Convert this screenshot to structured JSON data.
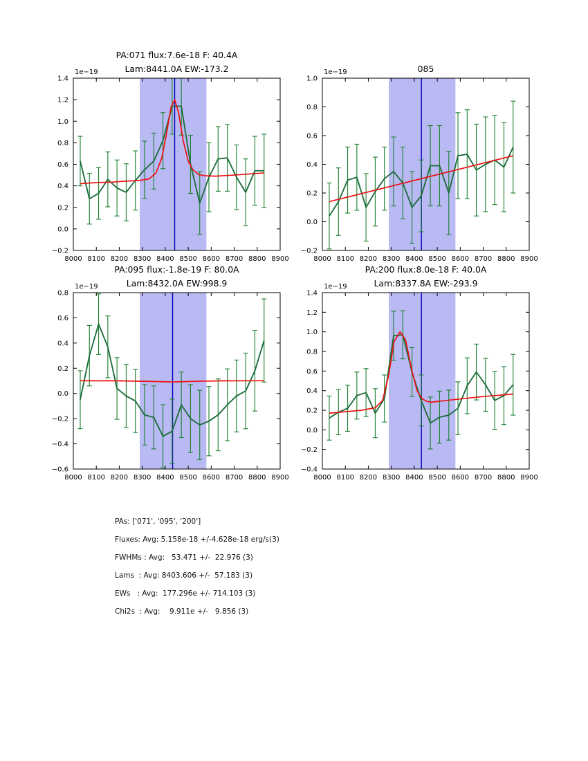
{
  "colors": {
    "spectrum": "#1e6e3c",
    "error": "#208333",
    "fit": "#ee1111",
    "band": "#b9b9f3",
    "vline": "#0000bb",
    "axis": "#000000"
  },
  "chart_data": [
    {
      "id": "pa071",
      "type": "line",
      "title_lines": [
        "PA:071 flux:7.6e-18 F: 40.4A",
        "Lam:8441.0A EW:-173.2"
      ],
      "offset_text": "1e−19",
      "xlim": [
        8000,
        8900
      ],
      "ylim": [
        -0.2,
        1.4
      ],
      "xticks": [
        8000,
        8100,
        8200,
        8300,
        8400,
        8500,
        8600,
        8700,
        8800,
        8900
      ],
      "yticks": [
        -0.2,
        0.0,
        0.2,
        0.4,
        0.6,
        0.8,
        1.0,
        1.2,
        1.4
      ],
      "band": [
        8289,
        8579
      ],
      "vline": 8441,
      "x": [
        8030,
        8070,
        8110,
        8150,
        8190,
        8230,
        8270,
        8310,
        8350,
        8390,
        8430,
        8470,
        8510,
        8550,
        8590,
        8630,
        8670,
        8710,
        8750,
        8790,
        8830
      ],
      "flux": [
        0.63,
        0.28,
        0.33,
        0.46,
        0.38,
        0.34,
        0.45,
        0.55,
        0.63,
        0.82,
        1.14,
        1.14,
        0.6,
        0.24,
        0.48,
        0.65,
        0.66,
        0.48,
        0.34,
        0.54,
        0.54
      ],
      "err": [
        0.23,
        0.235,
        0.24,
        0.255,
        0.26,
        0.265,
        0.275,
        0.265,
        0.26,
        0.26,
        0.26,
        0.27,
        0.27,
        0.29,
        0.32,
        0.3,
        0.31,
        0.3,
        0.31,
        0.32,
        0.34
      ],
      "fit_x": [
        8030,
        8100,
        8170,
        8240,
        8290,
        8330,
        8360,
        8385,
        8405,
        8425,
        8441,
        8458,
        8478,
        8500,
        8520,
        8545,
        8575,
        8620,
        8700,
        8830
      ],
      "fit_y": [
        0.42,
        0.43,
        0.435,
        0.445,
        0.45,
        0.465,
        0.52,
        0.66,
        0.88,
        1.13,
        1.2,
        1.08,
        0.82,
        0.63,
        0.55,
        0.505,
        0.493,
        0.49,
        0.5,
        0.52
      ],
      "pos": [
        106,
        113,
        299,
        249
      ]
    },
    {
      "id": "085",
      "type": "line",
      "title_lines": [
        "085"
      ],
      "offset_text": "1e−19",
      "xlim": [
        8000,
        8900
      ],
      "ylim": [
        -0.2,
        1.0
      ],
      "xticks": [
        8000,
        8100,
        8200,
        8300,
        8400,
        8500,
        8600,
        8700,
        8800,
        8900
      ],
      "yticks": [
        -0.2,
        0.0,
        0.2,
        0.4,
        0.6,
        0.8,
        1.0
      ],
      "band": [
        8289,
        8579
      ],
      "vline": 8431,
      "x": [
        8030,
        8070,
        8110,
        8150,
        8190,
        8230,
        8270,
        8310,
        8350,
        8390,
        8430,
        8470,
        8510,
        8550,
        8590,
        8630,
        8670,
        8710,
        8750,
        8790,
        8830
      ],
      "flux": [
        0.04,
        0.14,
        0.29,
        0.31,
        0.1,
        0.21,
        0.3,
        0.35,
        0.27,
        0.1,
        0.18,
        0.39,
        0.39,
        0.2,
        0.46,
        0.47,
        0.36,
        0.4,
        0.43,
        0.38,
        0.52
      ],
      "err": [
        0.23,
        0.235,
        0.23,
        0.23,
        0.235,
        0.24,
        0.22,
        0.24,
        0.25,
        0.25,
        0.25,
        0.28,
        0.28,
        0.29,
        0.3,
        0.31,
        0.32,
        0.33,
        0.31,
        0.31,
        0.32
      ],
      "fit_x": [
        8030,
        8830
      ],
      "fit_y": [
        0.14,
        0.46
      ],
      "pos": [
        466,
        113,
        299,
        249
      ]
    },
    {
      "id": "pa095",
      "type": "line",
      "title_lines": [
        "PA:095 flux:-1.8e-19 F: 80.0A",
        "Lam:8432.0A EW:998.9"
      ],
      "offset_text": "1e−19",
      "xlim": [
        8000,
        8900
      ],
      "ylim": [
        -0.6,
        0.8
      ],
      "xticks": [
        8000,
        8100,
        8200,
        8300,
        8400,
        8500,
        8600,
        8700,
        8800,
        8900
      ],
      "yticks": [
        -0.6,
        -0.4,
        -0.2,
        0.0,
        0.2,
        0.4,
        0.6,
        0.8
      ],
      "band": [
        8289,
        8579
      ],
      "vline": 8432,
      "x": [
        8030,
        8070,
        8110,
        8150,
        8190,
        8230,
        8270,
        8310,
        8350,
        8390,
        8430,
        8470,
        8510,
        8550,
        8590,
        8630,
        8670,
        8710,
        8750,
        8790,
        8830
      ],
      "flux": [
        -0.05,
        0.3,
        0.55,
        0.37,
        0.04,
        -0.02,
        -0.06,
        -0.17,
        -0.19,
        -0.34,
        -0.3,
        -0.09,
        -0.2,
        -0.25,
        -0.22,
        -0.17,
        -0.09,
        -0.02,
        0.02,
        0.18,
        0.42
      ],
      "err": [
        0.23,
        0.24,
        0.24,
        0.245,
        0.245,
        0.25,
        0.25,
        0.24,
        0.25,
        0.25,
        0.255,
        0.26,
        0.27,
        0.275,
        0.275,
        0.285,
        0.285,
        0.285,
        0.3,
        0.32,
        0.33
      ],
      "fit_x": [
        8030,
        8200,
        8330,
        8432,
        8540,
        8650,
        8830
      ],
      "fit_y": [
        0.101,
        0.1,
        0.096,
        0.091,
        0.097,
        0.1,
        0.101
      ],
      "pos": [
        106,
        423,
        299,
        255
      ]
    },
    {
      "id": "pa200",
      "type": "line",
      "title_lines": [
        "PA:200 flux:8.0e-18 F: 40.0A",
        "Lam:8337.8A EW:-293.9"
      ],
      "offset_text": "1e−19",
      "xlim": [
        8000,
        8900
      ],
      "ylim": [
        -0.4,
        1.4
      ],
      "xticks": [
        8000,
        8100,
        8200,
        8300,
        8400,
        8500,
        8600,
        8700,
        8800,
        8900
      ],
      "yticks": [
        -0.4,
        -0.2,
        0.0,
        0.2,
        0.4,
        0.6,
        0.8,
        1.0,
        1.2,
        1.4
      ],
      "band": [
        8289,
        8579
      ],
      "vline": 8431,
      "x": [
        8030,
        8070,
        8110,
        8150,
        8190,
        8230,
        8270,
        8310,
        8350,
        8390,
        8430,
        8470,
        8510,
        8550,
        8590,
        8630,
        8670,
        8710,
        8750,
        8790,
        8830
      ],
      "flux": [
        0.12,
        0.18,
        0.22,
        0.35,
        0.38,
        0.17,
        0.32,
        0.96,
        0.97,
        0.59,
        0.3,
        0.07,
        0.13,
        0.15,
        0.22,
        0.45,
        0.59,
        0.46,
        0.3,
        0.35,
        0.46
      ],
      "err": [
        0.225,
        0.23,
        0.235,
        0.24,
        0.245,
        0.25,
        0.24,
        0.25,
        0.245,
        0.25,
        0.26,
        0.265,
        0.265,
        0.255,
        0.27,
        0.285,
        0.285,
        0.27,
        0.295,
        0.295,
        0.31
      ],
      "fit_x": [
        8030,
        8100,
        8170,
        8230,
        8262,
        8288,
        8312,
        8338,
        8362,
        8388,
        8412,
        8435,
        8455,
        8475,
        8520,
        8600,
        8700,
        8830
      ],
      "fit_y": [
        0.17,
        0.185,
        0.2,
        0.225,
        0.3,
        0.55,
        0.9,
        1.0,
        0.92,
        0.62,
        0.4,
        0.315,
        0.29,
        0.282,
        0.295,
        0.315,
        0.34,
        0.365
      ],
      "pos": [
        466,
        423,
        299,
        255
      ]
    }
  ],
  "summary": {
    "lines": [
      "PAs: ['071', '095', '200']",
      "Fluxes: Avg: 5.158e-18 +/-4.628e-18 erg/s(3)",
      "FWHMs : Avg:   53.471 +/-  22.976 (3)",
      "Lams  : Avg: 8403.606 +/-  57.183 (3)",
      "EWs   : Avg:  177.296e +/- 714.103 (3)",
      "Chi2s  : Avg:    9.911e +/-   9.856 (3)"
    ]
  }
}
